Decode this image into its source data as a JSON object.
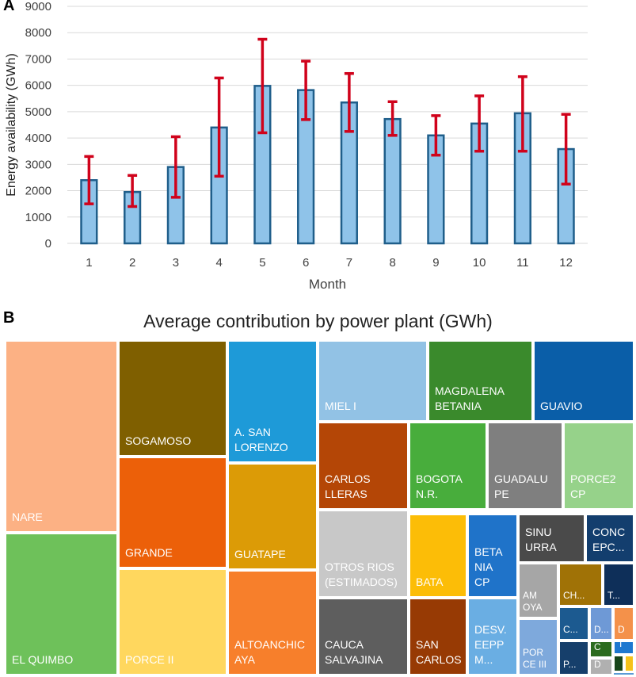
{
  "panel_a_letter": "A",
  "panel_b_letter": "B",
  "chart_data": [
    {
      "type": "bar",
      "title": "",
      "xlabel": "Month",
      "ylabel": "Energy availability (GWh)",
      "ylim": [
        0,
        9000
      ],
      "yticks": [
        0,
        1000,
        2000,
        3000,
        4000,
        5000,
        6000,
        7000,
        8000,
        9000
      ],
      "categories": [
        "1",
        "2",
        "3",
        "4",
        "5",
        "6",
        "7",
        "8",
        "9",
        "10",
        "11",
        "12"
      ],
      "values": [
        2400,
        1950,
        2900,
        4400,
        5980,
        5820,
        5350,
        4720,
        4100,
        4550,
        4940,
        3580
      ],
      "error_low": [
        1500,
        1400,
        1750,
        2550,
        4200,
        4700,
        4250,
        4100,
        3350,
        3500,
        3500,
        2250
      ],
      "error_high": [
        3300,
        2580,
        4050,
        6280,
        7750,
        6920,
        6450,
        5380,
        4850,
        5600,
        6330,
        4900
      ],
      "grid": true,
      "colors": {
        "bar_fill": "#8fc3e9",
        "bar_edge": "#1f5e8a",
        "error": "#d0021b",
        "grid": "#d9d9d9",
        "text": "#404040"
      }
    },
    {
      "type": "treemap",
      "title": "Average contribution by power plant (GWh)",
      "items": [
        {
          "label": "NARE",
          "color": "#fcb184"
        },
        {
          "label": "EL QUIMBO",
          "color": "#6ec15a"
        },
        {
          "label": "SOGAMOSO",
          "color": "#7f5f00"
        },
        {
          "label": "GRANDE",
          "color": "#ec6009"
        },
        {
          "label": "PORCE II",
          "color": "#ffd75e"
        },
        {
          "label": "A. SAN\nLORENZO",
          "color": "#1e9ad8"
        },
        {
          "label": "GUATAPE",
          "color": "#dc9b06"
        },
        {
          "label": "ALTOANCHIC\nAYA",
          "color": "#f77f2b"
        },
        {
          "label": "MIEL I",
          "color": "#92c2e5"
        },
        {
          "label": "MAGDALENA\nBETANIA",
          "color": "#3a8a2c"
        },
        {
          "label": "GUAVIO",
          "color": "#0a5ea8"
        },
        {
          "label": "CARLOS\nLLERAS",
          "color": "#b44606"
        },
        {
          "label": "BOGOTA\nN.R.",
          "color": "#48ad3c"
        },
        {
          "label": "GUADALU\nPE",
          "color": "#7f7f7f"
        },
        {
          "label": "PORCE2\nCP",
          "color": "#96d28a"
        },
        {
          "label": "OTROS RIOS\n(ESTIMADOS)",
          "color": "#c8c8c8"
        },
        {
          "label": "CAUCA\nSALVAJINA",
          "color": "#5e5e5e"
        },
        {
          "label": "BATA",
          "color": "#fcbd07"
        },
        {
          "label": "SAN\nCARLOS",
          "color": "#973a04"
        },
        {
          "label": "BETA\nNIA\nCP",
          "color": "#1f73c9"
        },
        {
          "label": "DESV.\nEEPP\nM...",
          "color": "#6aaee3"
        },
        {
          "label": "SINU\nURRA",
          "color": "#4a4a4a"
        },
        {
          "label": "CONC\nEPC...",
          "color": "#133e6e"
        },
        {
          "label": "AM\nOYA",
          "color": "#a6a6a6"
        },
        {
          "label": "POR\nCE III",
          "color": "#7ea9dc"
        },
        {
          "label": "CH...",
          "color": "#a07206"
        },
        {
          "label": "T...",
          "color": "#0e2f59"
        },
        {
          "label": "C...",
          "color": "#1c5a90"
        },
        {
          "label": "D...",
          "color": "#6e99d6"
        },
        {
          "label": "D",
          "color": "#f4914a"
        },
        {
          "label": "P...",
          "color": "#163f6b"
        },
        {
          "label": "C",
          "color": "#2b6b1e"
        },
        {
          "label": "D",
          "color": "#b0b0b0"
        },
        {
          "label": "T",
          "color": "#1e78d0"
        },
        {
          "label": "",
          "color": "#17451a"
        },
        {
          "label": "",
          "color": "#f5c21a"
        },
        {
          "label": "",
          "color": "#5b9bd5"
        }
      ]
    }
  ]
}
